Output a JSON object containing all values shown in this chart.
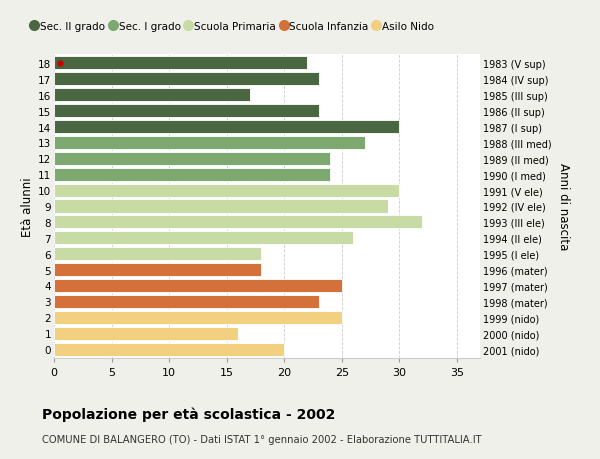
{
  "ages": [
    18,
    17,
    16,
    15,
    14,
    13,
    12,
    11,
    10,
    9,
    8,
    7,
    6,
    5,
    4,
    3,
    2,
    1,
    0
  ],
  "values": [
    22,
    23,
    17,
    23,
    30,
    27,
    24,
    24,
    30,
    29,
    32,
    26,
    18,
    18,
    25,
    23,
    25,
    16,
    20
  ],
  "right_labels": [
    "1983 (V sup)",
    "1984 (IV sup)",
    "1985 (III sup)",
    "1986 (II sup)",
    "1987 (I sup)",
    "1988 (III med)",
    "1989 (II med)",
    "1990 (I med)",
    "1991 (V ele)",
    "1992 (IV ele)",
    "1993 (III ele)",
    "1994 (II ele)",
    "1995 (I ele)",
    "1996 (mater)",
    "1997 (mater)",
    "1998 (mater)",
    "1999 (nido)",
    "2000 (nido)",
    "2001 (nido)"
  ],
  "categories": {
    "Sec. II grado": {
      "ages": [
        18,
        17,
        16,
        15,
        14
      ],
      "color": "#4a6741"
    },
    "Sec. I grado": {
      "ages": [
        13,
        12,
        11
      ],
      "color": "#7da870"
    },
    "Scuola Primaria": {
      "ages": [
        10,
        9,
        8,
        7,
        6
      ],
      "color": "#c8dba5"
    },
    "Scuola Infanzia": {
      "ages": [
        5,
        4,
        3
      ],
      "color": "#d4703a"
    },
    "Asilo Nido": {
      "ages": [
        2,
        1,
        0
      ],
      "color": "#f2d080"
    }
  },
  "legend_order": [
    "Sec. II grado",
    "Sec. I grado",
    "Scuola Primaria",
    "Scuola Infanzia",
    "Asilo Nido"
  ],
  "legend_colors": [
    "#4a6741",
    "#7da870",
    "#c8dba5",
    "#d4703a",
    "#f2d080"
  ],
  "ylabel_left": "Età alunni",
  "ylabel_right": "Anni di nascita",
  "xlim": [
    0,
    37
  ],
  "xticks": [
    0,
    5,
    10,
    15,
    20,
    25,
    30,
    35
  ],
  "title_main": "Popolazione per età scolastica - 2002",
  "title_sub": "COMUNE DI BALANGERO (TO) - Dati ISTAT 1° gennaio 2002 - Elaborazione TUTTITALIA.IT",
  "bg_color": "#f0f0eb",
  "plot_bg_color": "#ffffff",
  "grid_color": "#cccccc",
  "red_dot_color": "#cc0000",
  "bar_height": 0.82
}
